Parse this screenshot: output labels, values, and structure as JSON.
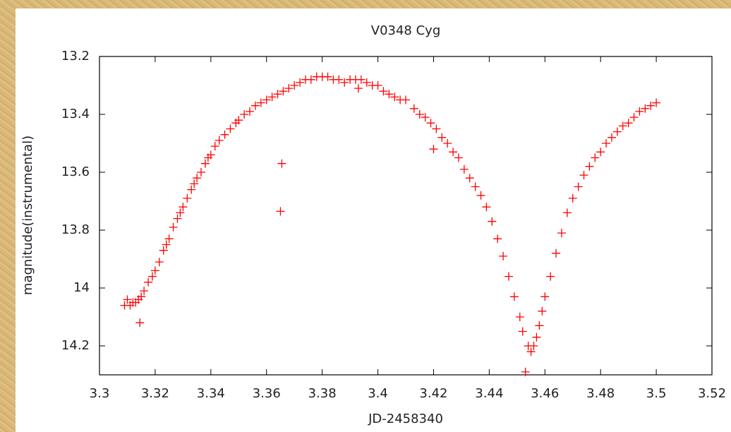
{
  "chart_data": {
    "type": "scatter",
    "title": "V0348 Cyg",
    "x_label": "JD-2458340",
    "y_label": "magnitude(instrumental)",
    "color": "#ff0000",
    "xlim": [
      3.3,
      3.52
    ],
    "xticks": [
      3.3,
      3.32,
      3.34,
      3.36,
      3.38,
      3.4,
      3.42,
      3.44,
      3.46,
      3.48,
      3.5,
      3.52
    ],
    "ylim": [
      14.3,
      13.2
    ],
    "yticks": [
      13.2,
      13.4,
      13.6,
      13.8,
      14,
      14.2
    ],
    "x": [
      3.309,
      3.31,
      3.311,
      3.312,
      3.313,
      3.314,
      3.3145,
      3.315,
      3.316,
      3.3175,
      3.319,
      3.32,
      3.3215,
      3.323,
      3.324,
      3.325,
      3.3265,
      3.328,
      3.329,
      3.33,
      3.3315,
      3.333,
      3.334,
      3.335,
      3.3365,
      3.338,
      3.339,
      3.34,
      3.3415,
      3.343,
      3.345,
      3.347,
      3.349,
      3.35,
      3.352,
      3.354,
      3.356,
      3.358,
      3.36,
      3.362,
      3.364,
      3.365,
      3.3655,
      3.366,
      3.368,
      3.37,
      3.372,
      3.374,
      3.376,
      3.378,
      3.38,
      3.382,
      3.384,
      3.386,
      3.388,
      3.39,
      3.392,
      3.393,
      3.394,
      3.396,
      3.398,
      3.4,
      3.402,
      3.404,
      3.406,
      3.408,
      3.41,
      3.413,
      3.415,
      3.417,
      3.419,
      3.42,
      3.421,
      3.423,
      3.425,
      3.427,
      3.429,
      3.431,
      3.433,
      3.435,
      3.437,
      3.439,
      3.441,
      3.443,
      3.445,
      3.447,
      3.449,
      3.451,
      3.452,
      3.453,
      3.454,
      3.455,
      3.456,
      3.457,
      3.458,
      3.459,
      3.46,
      3.462,
      3.464,
      3.466,
      3.468,
      3.47,
      3.472,
      3.474,
      3.476,
      3.478,
      3.48,
      3.482,
      3.484,
      3.486,
      3.488,
      3.49,
      3.492,
      3.494,
      3.496,
      3.498,
      3.5
    ],
    "values": [
      14.06,
      14.04,
      14.06,
      14.05,
      14.05,
      14.04,
      14.12,
      14.03,
      14.01,
      13.98,
      13.96,
      13.94,
      13.91,
      13.87,
      13.85,
      13.83,
      13.79,
      13.76,
      13.74,
      13.72,
      13.69,
      13.66,
      13.64,
      13.62,
      13.6,
      13.57,
      13.55,
      13.54,
      13.51,
      13.49,
      13.47,
      13.45,
      13.43,
      13.42,
      13.4,
      13.39,
      13.37,
      13.36,
      13.35,
      13.34,
      13.33,
      13.735,
      13.57,
      13.32,
      13.31,
      13.3,
      13.29,
      13.28,
      13.28,
      13.27,
      13.27,
      13.27,
      13.28,
      13.28,
      13.29,
      13.28,
      13.28,
      13.31,
      13.28,
      13.29,
      13.3,
      13.3,
      13.32,
      13.33,
      13.34,
      13.35,
      13.35,
      13.38,
      13.4,
      13.41,
      13.43,
      13.52,
      13.45,
      13.48,
      13.5,
      13.53,
      13.55,
      13.59,
      13.62,
      13.65,
      13.68,
      13.72,
      13.77,
      13.83,
      13.89,
      13.96,
      14.03,
      14.1,
      14.15,
      14.29,
      14.2,
      14.22,
      14.2,
      14.17,
      14.13,
      14.08,
      14.03,
      13.96,
      13.88,
      13.81,
      13.74,
      13.69,
      13.65,
      13.61,
      13.58,
      13.55,
      13.53,
      13.5,
      13.48,
      13.46,
      13.44,
      13.43,
      13.41,
      13.39,
      13.38,
      13.37,
      13.36
    ]
  }
}
